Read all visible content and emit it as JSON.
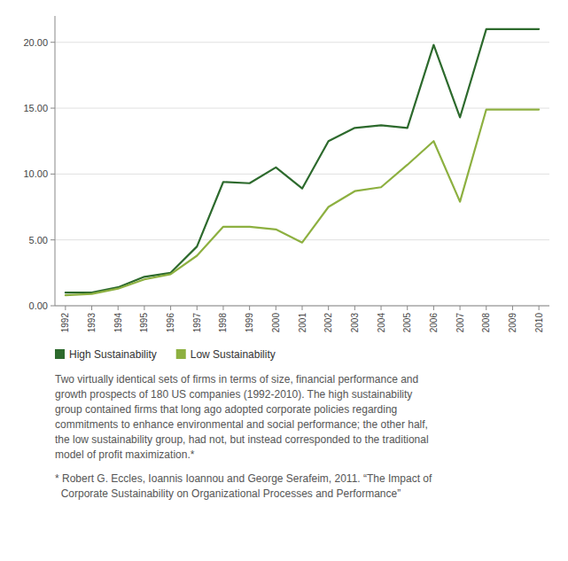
{
  "chart_data": {
    "type": "line",
    "x": [
      1992,
      1993,
      1994,
      1995,
      1996,
      1997,
      1998,
      1999,
      2000,
      2001,
      2002,
      2003,
      2004,
      2005,
      2006,
      2007,
      2008,
      2009,
      2010
    ],
    "series": [
      {
        "name": "High Sustainability",
        "color": "#2d6a2d",
        "values": [
          1.0,
          1.0,
          1.4,
          2.2,
          2.5,
          4.5,
          9.4,
          9.3,
          10.5,
          8.9,
          12.5,
          13.5,
          13.7,
          13.5,
          19.8,
          14.3,
          21.0,
          21.0,
          21.0
        ]
      },
      {
        "name": "Low Sustainability",
        "color": "#8db040",
        "values": [
          0.8,
          0.9,
          1.3,
          2.0,
          2.4,
          3.8,
          6.0,
          6.0,
          5.8,
          4.8,
          7.5,
          8.7,
          9.0,
          10.7,
          12.5,
          7.9,
          14.9,
          14.9,
          14.9
        ]
      }
    ],
    "xlim": [
      1991.6,
      2010.4
    ],
    "xticks": [
      1992,
      1993,
      1994,
      1995,
      1996,
      1997,
      1998,
      1999,
      2000,
      2001,
      2002,
      2003,
      2004,
      2005,
      2006,
      2007,
      2008,
      2009,
      2010
    ],
    "ylim": [
      0,
      22
    ],
    "yticks": [
      {
        "value": 0.0,
        "label": "0.00"
      },
      {
        "value": 5.0,
        "label": "5.00"
      },
      {
        "value": 10.0,
        "label": "10.00"
      },
      {
        "value": 15.0,
        "label": "15.00"
      },
      {
        "value": 20.0,
        "label": "20.00"
      }
    ],
    "grid": true,
    "legend": "bottom",
    "annotations": [
      [
        "Two virtually identical sets of firms in terms of size, financial performance and",
        "growth prospects of 180 US companies (1992-2010). The high sustainability",
        "group contained firms that long ago adopted corporate policies regarding",
        "commitments to enhance environmental and social performance; the other half,",
        "the low sustainability group, had not, but instead corresponded to the traditional",
        "model of profit maximization.*"
      ],
      [
        "* Robert G. Eccles, Ioannis Ioannou and George Serafeim, 2011. “The Impact of",
        "  Corporate Sustainability on Organizational Processes and Performance”"
      ]
    ]
  }
}
